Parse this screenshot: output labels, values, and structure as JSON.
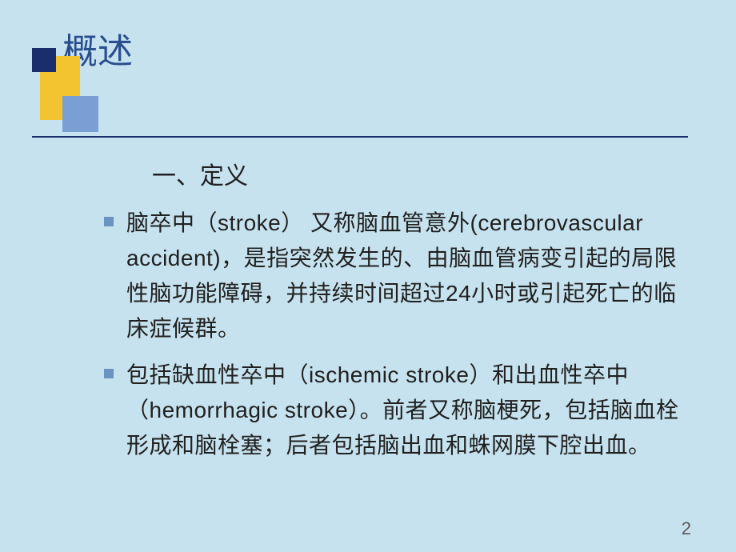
{
  "slide": {
    "title": "概述",
    "subtitle": "一、定义",
    "bullets": [
      "脑卒中（stroke） 又称脑血管意外(cerebrovascular accident)，是指突然发生的、由脑血管病变引起的局限性脑功能障碍，并持续时间超过24小时或引起死亡的临床症候群。",
      "包括缺血性卒中（ischemic stroke）和出血性卒中（hemorrhagic stroke）。前者又称脑梗死，包括脑血栓形成和脑栓塞；后者包括脑出血和蛛网膜下腔出血。"
    ],
    "page_number": "2"
  },
  "style": {
    "background_color": "#c6e2ee",
    "title_color": "#2a4d8e",
    "title_fontsize": 44,
    "body_fontsize": 28,
    "body_color": "#202020",
    "bullet_color": "#6a93c2",
    "accent_yellow": "#f4c430",
    "accent_navy": "#1a2e6e",
    "accent_blue": "#7a9fd4",
    "line_color": "#1a2e6e"
  }
}
